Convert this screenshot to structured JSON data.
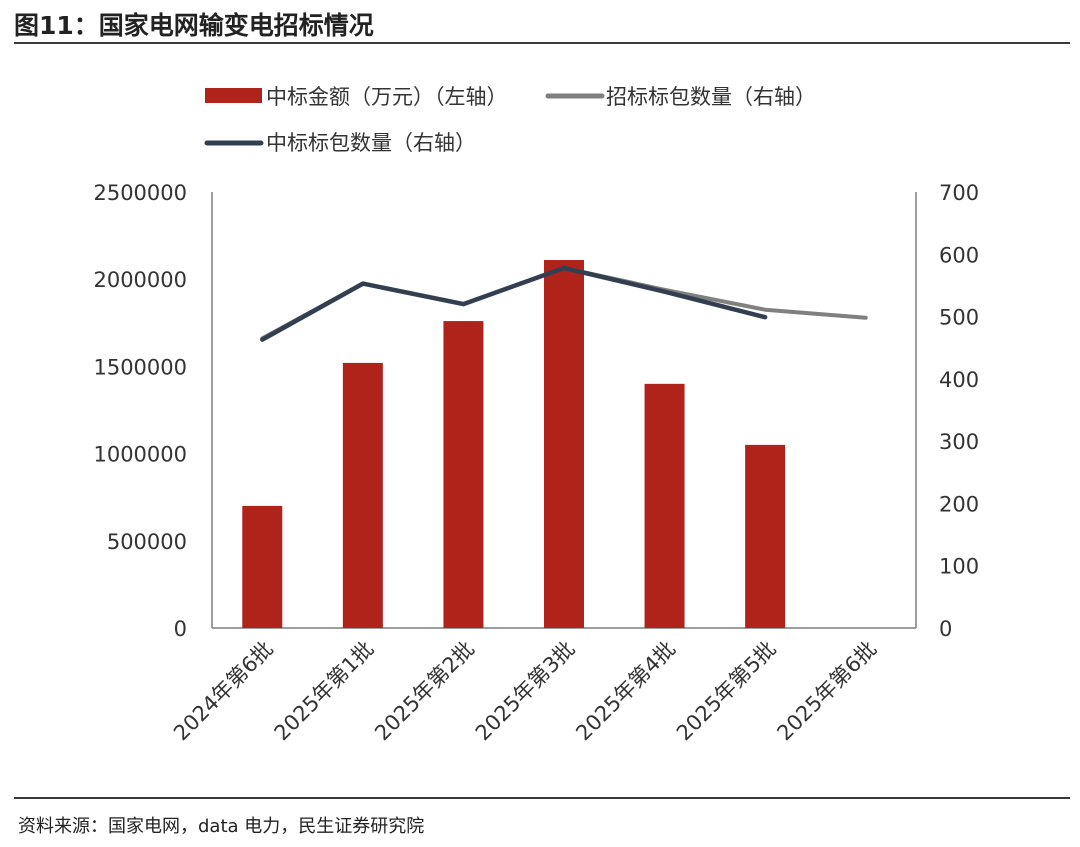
{
  "title": "图11：国家电网输变电招标情况",
  "source": "资料来源：国家电网，data 电力，民生证券研究院",
  "chart_data": {
    "type": "bar+line",
    "categories": [
      "2024年第6批",
      "2025年第1批",
      "2025年第2批",
      "2025年第3批",
      "2025年第4批",
      "2025年第5批",
      "2025年第6批"
    ],
    "bar_series": {
      "name": "中标金额（万元）（左轴）",
      "color": "#B0231A",
      "values": [
        700000,
        1520000,
        1760000,
        2110000,
        1400000,
        1050000,
        null
      ]
    },
    "line_series": [
      {
        "name": "招标标包数量（右轴）",
        "color": "#808080",
        "values": [
          465,
          553,
          520,
          578,
          543,
          511,
          498
        ]
      },
      {
        "name": "中标标包数量（右轴）",
        "color": "#333F50",
        "values": [
          463,
          553,
          520,
          578,
          540,
          499,
          null
        ]
      }
    ],
    "left_axis": {
      "min": 0,
      "max": 2500000,
      "ticks": [
        0,
        500000,
        1000000,
        1500000,
        2000000,
        2500000
      ],
      "tick_labels": [
        "0",
        "500000",
        "1000000",
        "1500000",
        "2000000",
        "2500000"
      ]
    },
    "right_axis": {
      "min": 0,
      "max": 700,
      "ticks": [
        0,
        100,
        200,
        300,
        400,
        500,
        600,
        700
      ],
      "tick_labels": [
        "0",
        "100",
        "200",
        "300",
        "400",
        "500",
        "600",
        "700"
      ]
    },
    "legend_position": "top"
  }
}
